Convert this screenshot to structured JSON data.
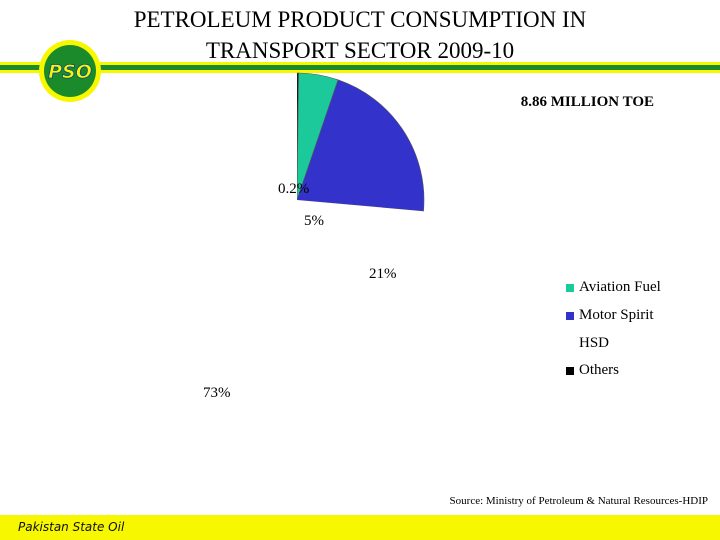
{
  "header": {
    "title_line1": "PETROLEUM PRODUCT CONSUMPTION IN",
    "title_line2": "TRANSPORT SECTOR 2009-10",
    "logo_text": "PSO"
  },
  "chart_data": {
    "type": "pie",
    "title": "PETROLEUM PRODUCT CONSUMPTION IN TRANSPORT SECTOR 2009-10",
    "subtitle": "8.86 MILLION TOE",
    "slices": [
      {
        "name": "Aviation Fuel",
        "label": "5%",
        "value": 5,
        "color": "#1cc99a"
      },
      {
        "name": "Motor Spirit",
        "label": "21%",
        "value": 21,
        "color": "#3333cc"
      },
      {
        "name": "HSD",
        "label": "73%",
        "value": 73,
        "color": "#ffffff"
      },
      {
        "name": "Others",
        "label": "0.2%",
        "value": 0.2,
        "color": "#000000"
      }
    ],
    "legend": [
      "Aviation Fuel",
      "Motor Spirit",
      "HSD",
      "Others"
    ],
    "legend_position": "right"
  },
  "footer": {
    "source": "Source: Ministry of Petroleum  & Natural Resources-HDIP",
    "company": "Pakistan State Oil"
  },
  "colors": {
    "stripe_green": "#1a8a2a",
    "stripe_yellow": "#f7f700",
    "footer_bg": "#f7f700"
  }
}
